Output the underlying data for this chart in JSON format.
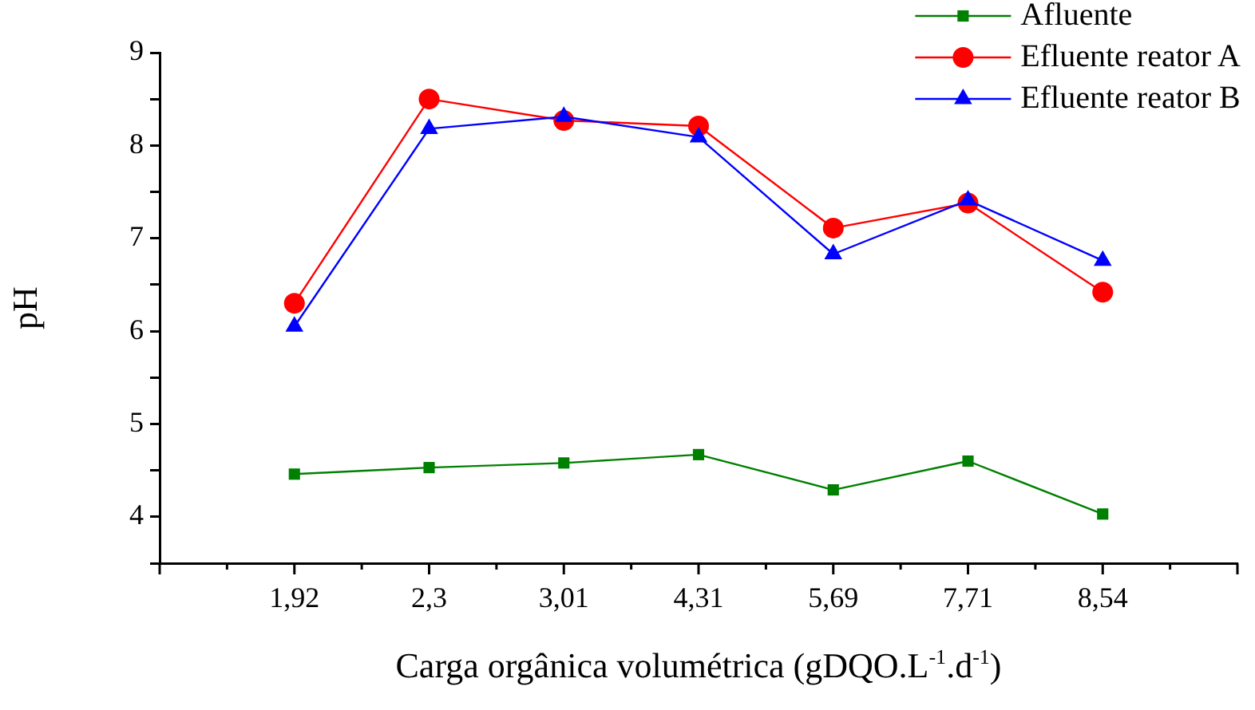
{
  "chart_data": {
    "type": "line",
    "xlabel": "Carga orgânica volumétrica (gDQO.L$^{-1}$.d$^{-1}$)",
    "ylabel": "pH",
    "categories": [
      "1,92",
      "2,3",
      "3,01",
      "4,31",
      "5,69",
      "7,71",
      "8,54"
    ],
    "series": [
      {
        "name": "Afluente",
        "color": "#008000",
        "marker": "square",
        "values": [
          4.46,
          4.53,
          4.58,
          4.67,
          4.29,
          4.6,
          4.03
        ]
      },
      {
        "name": "Efluente reator A",
        "color": "#ff0000",
        "marker": "circle",
        "values": [
          6.3,
          8.5,
          8.27,
          8.21,
          7.11,
          7.38,
          6.42
        ]
      },
      {
        "name": "Efluente reator B",
        "color": "#0000ff",
        "marker": "triangle",
        "values": [
          6.05,
          8.18,
          8.31,
          8.09,
          6.83,
          7.41,
          6.76
        ]
      }
    ],
    "ylim": [
      3.5,
      9
    ],
    "yticks": [
      {
        "value": 3.5,
        "label": null
      },
      4,
      {
        "value": 4.5,
        "label": null
      },
      5,
      {
        "value": 5.5,
        "label": null
      },
      6,
      {
        "value": 6.5,
        "label": null
      },
      7,
      {
        "value": 7.5,
        "label": null
      },
      8,
      {
        "value": 8.5,
        "label": null
      },
      9
    ],
    "grid": false,
    "legend": "top right",
    "line_style": "solid"
  }
}
